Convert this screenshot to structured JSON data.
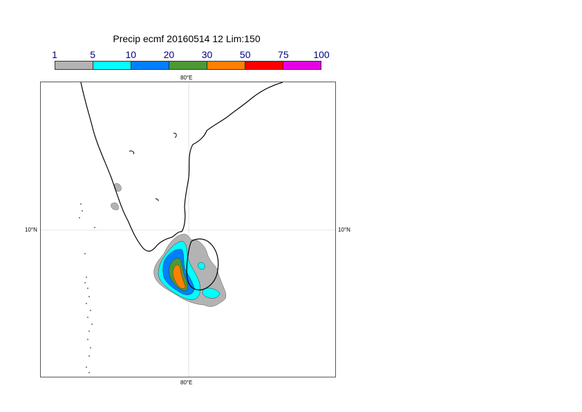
{
  "title": "Precip ecmf 20160514 12 Lim:150",
  "legend": {
    "labels": [
      "1",
      "5",
      "10",
      "20",
      "30",
      "50",
      "75",
      "100"
    ],
    "colors": [
      "#b3b3b3",
      "#00ffff",
      "#0080ff",
      "#4d9933",
      "#ff8000",
      "#ff0000",
      "#e600e6"
    ]
  },
  "axes": {
    "lon_top": "80°E",
    "lon_bottom": "80°E",
    "lat_left": "10°N",
    "lat_right": "10°N"
  },
  "colors": {
    "coast": "#000000",
    "grid": "#cccccc"
  }
}
